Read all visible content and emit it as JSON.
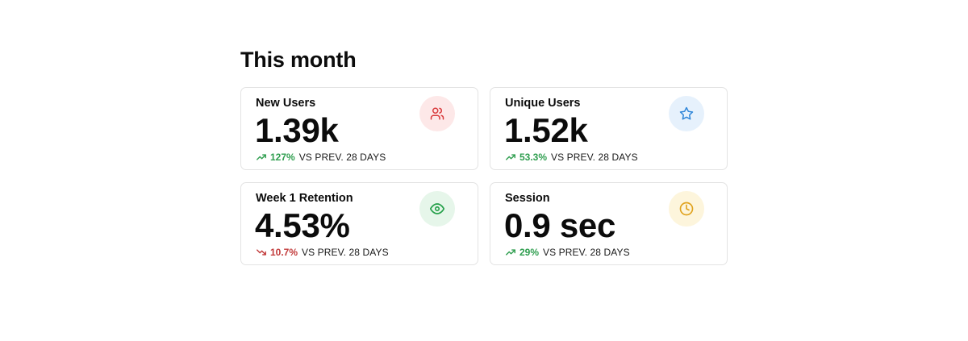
{
  "section": {
    "title": "This month"
  },
  "cards": [
    {
      "label": "New Users",
      "value": "1.39k",
      "delta": "127%",
      "delta_suffix": "VS PREV. 28 DAYS",
      "trend": "up",
      "icon": "users-icon",
      "icon_color": "#d9393b",
      "badge_bg": "#fde8e8"
    },
    {
      "label": "Unique Users",
      "value": "1.52k",
      "delta": "53.3%",
      "delta_suffix": "VS PREV. 28 DAYS",
      "trend": "up",
      "icon": "star-icon",
      "icon_color": "#2f86d9",
      "badge_bg": "#e6f1fc"
    },
    {
      "label": "Week 1 Retention",
      "value": "4.53%",
      "delta": "10.7%",
      "delta_suffix": "VS PREV. 28 DAYS",
      "trend": "down",
      "icon": "eye-icon",
      "icon_color": "#25a04a",
      "badge_bg": "#e6f6ea"
    },
    {
      "label": "Session",
      "value": "0.9 sec",
      "delta": "29%",
      "delta_suffix": "VS PREV. 28 DAYS",
      "trend": "up",
      "icon": "clock-icon",
      "icon_color": "#e0a21c",
      "badge_bg": "#fdf5dc"
    }
  ],
  "colors": {
    "trend_up": "#2f9e4f",
    "trend_down": "#c23b3b",
    "card_border": "#e3e3e3"
  }
}
